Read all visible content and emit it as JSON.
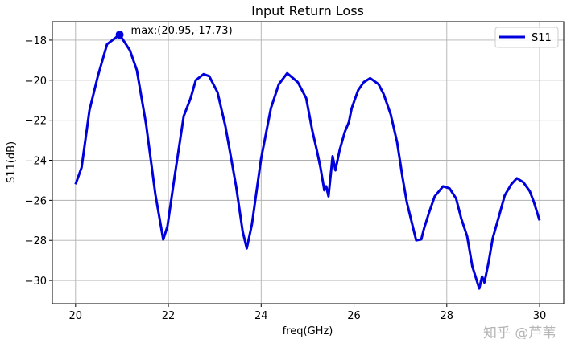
{
  "chart_data": {
    "type": "line",
    "title": "Input Return Loss",
    "xlabel": "freq(GHz)",
    "ylabel": "S11(dB)",
    "xlim": [
      19.5,
      30.52
    ],
    "ylim": [
      -31.16,
      -17.08
    ],
    "xticks": [
      20,
      22,
      24,
      26,
      28,
      30
    ],
    "yticks": [
      -30,
      -28,
      -26,
      -24,
      -22,
      -20,
      -18
    ],
    "xtick_labels": [
      "20",
      "22",
      "24",
      "26",
      "28",
      "30"
    ],
    "ytick_labels": [
      "−30",
      "−28",
      "−26",
      "−24",
      "−22",
      "−20",
      "−18"
    ],
    "grid": true,
    "legend_position": "top-right",
    "series": [
      {
        "name": "S11",
        "color": "#0000dd",
        "x": [
          20.0,
          20.13,
          20.3,
          20.48,
          20.68,
          20.95,
          21.17,
          21.32,
          21.52,
          21.72,
          21.89,
          21.98,
          22.13,
          22.33,
          22.48,
          22.59,
          22.76,
          22.88,
          23.06,
          23.23,
          23.46,
          23.6,
          23.69,
          23.8,
          24.0,
          24.21,
          24.38,
          24.56,
          24.79,
          24.97,
          25.1,
          25.2,
          25.28,
          25.36,
          25.4,
          25.45,
          25.54,
          25.6,
          25.69,
          25.8,
          25.89,
          25.95,
          26.09,
          26.21,
          26.35,
          26.53,
          26.64,
          26.79,
          26.93,
          27.05,
          27.14,
          27.25,
          27.34,
          27.45,
          27.51,
          27.62,
          27.74,
          27.92,
          28.06,
          28.2,
          28.31,
          28.44,
          28.55,
          28.7,
          28.76,
          28.81,
          28.9,
          28.99,
          29.13,
          29.25,
          29.39,
          29.51,
          29.65,
          29.79,
          29.88,
          30.0
        ],
        "y": [
          -25.2,
          -24.36,
          -21.5,
          -19.8,
          -18.2,
          -17.73,
          -18.5,
          -19.5,
          -22.2,
          -25.7,
          -27.96,
          -27.3,
          -24.9,
          -21.8,
          -20.9,
          -20.0,
          -19.7,
          -19.8,
          -20.6,
          -22.3,
          -25.3,
          -27.55,
          -28.4,
          -27.2,
          -23.9,
          -21.4,
          -20.2,
          -19.65,
          -20.1,
          -20.9,
          -22.5,
          -23.5,
          -24.4,
          -25.5,
          -25.3,
          -25.8,
          -23.8,
          -24.5,
          -23.5,
          -22.6,
          -22.1,
          -21.4,
          -20.5,
          -20.1,
          -19.9,
          -20.2,
          -20.7,
          -21.7,
          -23.1,
          -24.9,
          -26.1,
          -27.15,
          -28.0,
          -27.95,
          -27.4,
          -26.6,
          -25.8,
          -25.3,
          -25.4,
          -25.9,
          -26.9,
          -27.8,
          -29.3,
          -30.4,
          -29.8,
          -30.1,
          -29.1,
          -27.9,
          -26.75,
          -25.75,
          -25.2,
          -24.9,
          -25.1,
          -25.55,
          -26.1,
          -27.0
        ]
      }
    ],
    "annotation": {
      "text": "max:(20.95,-17.73)",
      "x": 20.95,
      "y": -17.73
    },
    "watermark": "知乎 @芦苇"
  }
}
